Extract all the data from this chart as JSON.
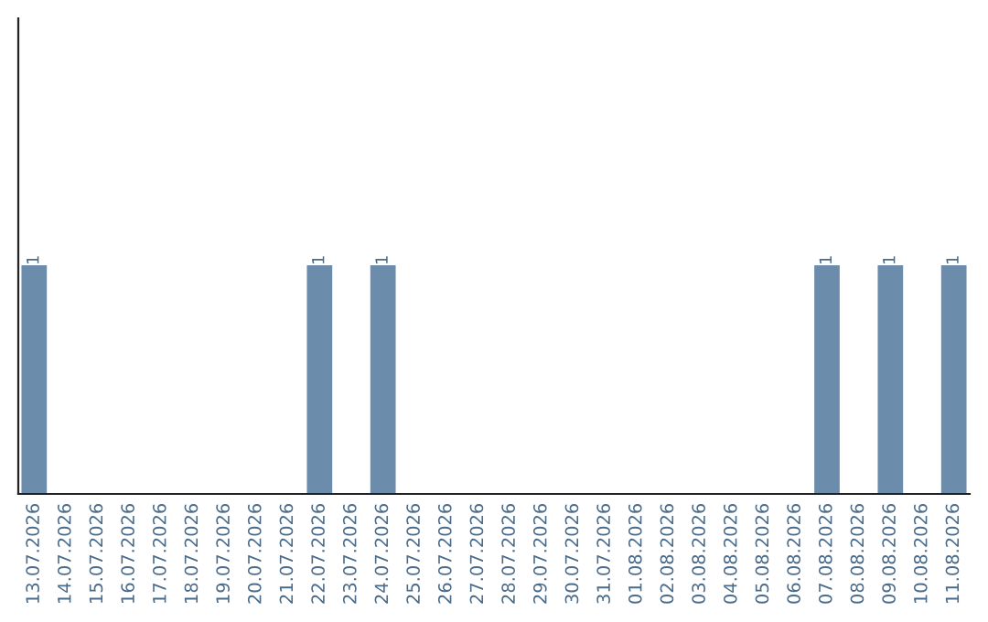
{
  "chart_data": {
    "type": "bar",
    "categories": [
      "13.07.2026",
      "14.07.2026",
      "15.07.2026",
      "16.07.2026",
      "17.07.2026",
      "18.07.2026",
      "19.07.2026",
      "20.07.2026",
      "21.07.2026",
      "22.07.2026",
      "23.07.2026",
      "24.07.2026",
      "25.07.2026",
      "26.07.2026",
      "27.07.2026",
      "28.07.2026",
      "29.07.2026",
      "30.07.2026",
      "31.07.2026",
      "01.08.2026",
      "02.08.2026",
      "03.08.2026",
      "04.08.2026",
      "05.08.2026",
      "06.08.2026",
      "07.08.2026",
      "08.08.2026",
      "09.08.2026",
      "10.08.2026",
      "11.08.2026"
    ],
    "values": [
      1,
      0,
      0,
      0,
      0,
      0,
      0,
      0,
      0,
      1,
      0,
      1,
      0,
      0,
      0,
      0,
      0,
      0,
      0,
      0,
      0,
      0,
      0,
      0,
      0,
      1,
      0,
      1,
      0,
      1
    ],
    "value_labels": [
      "1",
      null,
      null,
      null,
      null,
      null,
      null,
      null,
      null,
      "1",
      null,
      "1",
      null,
      null,
      null,
      null,
      null,
      null,
      null,
      null,
      null,
      null,
      null,
      null,
      null,
      "1",
      null,
      "1",
      null,
      "1"
    ],
    "color": "#6b8cab",
    "ylim": [
      0,
      2.08
    ],
    "tick_labels": "x",
    "grid": false,
    "legend": false
  }
}
